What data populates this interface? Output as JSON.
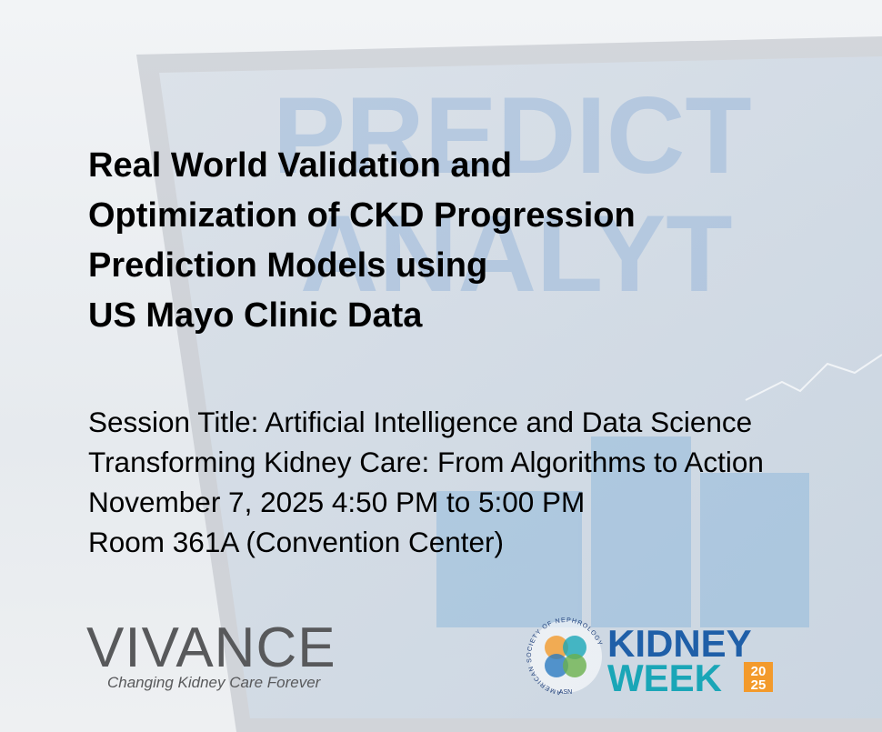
{
  "background": {
    "words": [
      "PREDICT",
      "ANALYT"
    ]
  },
  "title": {
    "lines": [
      "Real World Validation and",
      "Optimization of CKD Progression",
      "Prediction Models using",
      "US Mayo Clinic Data"
    ]
  },
  "session": {
    "lines": [
      "Session Title: Artificial Intelligence and Data Science",
      "Transforming Kidney Care: From Algorithms to Action",
      "November 7, 2025 4:50 PM to 5:00 PM",
      "Room 361A (Convention Center)"
    ]
  },
  "vivance": {
    "name": "VIVANCE",
    "tagline": "Changing Kidney Care Forever"
  },
  "kidney_week": {
    "ring": "AMERICAN SOCIETY OF NEPHROLOGY",
    "ring_short": "ASN",
    "word1": "KIDNEY",
    "word2": "WEEK",
    "year_top": "20",
    "year_bottom": "25"
  }
}
